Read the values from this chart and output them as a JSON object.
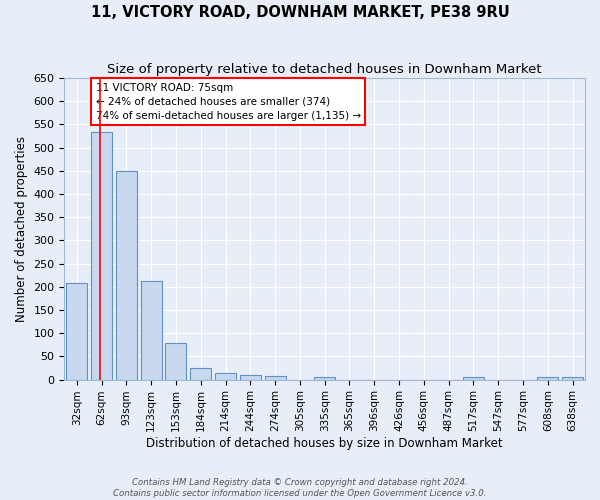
{
  "title": "11, VICTORY ROAD, DOWNHAM MARKET, PE38 9RU",
  "subtitle": "Size of property relative to detached houses in Downham Market",
  "xlabel": "Distribution of detached houses by size in Downham Market",
  "ylabel": "Number of detached properties",
  "bar_labels": [
    "32sqm",
    "62sqm",
    "93sqm",
    "123sqm",
    "153sqm",
    "184sqm",
    "214sqm",
    "244sqm",
    "274sqm",
    "305sqm",
    "335sqm",
    "365sqm",
    "396sqm",
    "426sqm",
    "456sqm",
    "487sqm",
    "517sqm",
    "547sqm",
    "577sqm",
    "608sqm",
    "638sqm"
  ],
  "bar_values": [
    208,
    534,
    450,
    213,
    78,
    25,
    15,
    10,
    7,
    0,
    6,
    0,
    0,
    0,
    0,
    0,
    5,
    0,
    0,
    5,
    5
  ],
  "bar_color": "#c8d8ef",
  "bar_edge_color": "#6090c8",
  "ylim": [
    0,
    650
  ],
  "yticks": [
    0,
    50,
    100,
    150,
    200,
    250,
    300,
    350,
    400,
    450,
    500,
    550,
    600,
    650
  ],
  "red_line_x": 75,
  "annotation_text": "11 VICTORY ROAD: 75sqm\n← 24% of detached houses are smaller (374)\n74% of semi-detached houses are larger (1,135) →",
  "footer_line1": "Contains HM Land Registry data © Crown copyright and database right 2024.",
  "footer_line2": "Contains public sector information licensed under the Open Government Licence v3.0.",
  "background_color": "#e8eef8",
  "plot_background": "#e8eef8",
  "grid_color": "#ffffff",
  "title_fontsize": 10.5,
  "subtitle_fontsize": 9.5,
  "ylabel_text": "Number of detached properties"
}
